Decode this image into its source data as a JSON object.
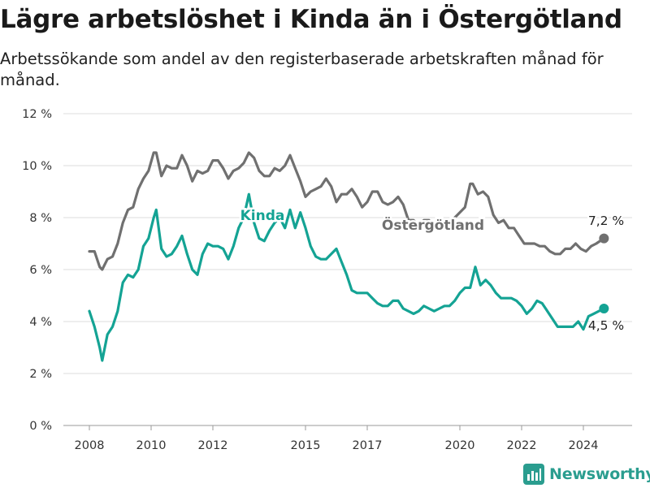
{
  "title": "Lägre arbetslöshet i Kinda än i Östergötland",
  "subtitle": "Arbetssökande som andel av den registerbaserade arbetskraften månad för månad.",
  "brand": {
    "name": "Newsworthy",
    "color": "#2a9d8f",
    "icon": "newsworthy-logo-icon"
  },
  "chart_data": {
    "type": "line",
    "x_ticks": [
      "2008",
      "2010",
      "2012",
      "2015",
      "2017",
      "2020",
      "2022",
      "2024"
    ],
    "y_ticks": [
      "0 %",
      "2 %",
      "4 %",
      "6 %",
      "8 %",
      "10 %",
      "12 %"
    ],
    "ylim": [
      0,
      12
    ],
    "grid": true,
    "series": [
      {
        "name": "Östergötland",
        "color": "#707070",
        "end_label": "7,2 %",
        "points": [
          [
            "2008-01",
            6.7
          ],
          [
            "2008-03",
            6.7
          ],
          [
            "2008-05",
            6.1
          ],
          [
            "2008-06",
            6.0
          ],
          [
            "2008-08",
            6.4
          ],
          [
            "2008-10",
            6.5
          ],
          [
            "2008-12",
            7.0
          ],
          [
            "2009-02",
            7.8
          ],
          [
            "2009-04",
            8.3
          ],
          [
            "2009-06",
            8.4
          ],
          [
            "2009-08",
            9.1
          ],
          [
            "2009-10",
            9.5
          ],
          [
            "2009-12",
            9.8
          ],
          [
            "2010-02",
            10.5
          ],
          [
            "2010-03",
            10.5
          ],
          [
            "2010-05",
            9.6
          ],
          [
            "2010-07",
            10.0
          ],
          [
            "2010-09",
            9.9
          ],
          [
            "2010-11",
            9.9
          ],
          [
            "2011-01",
            10.4
          ],
          [
            "2011-03",
            10.0
          ],
          [
            "2011-05",
            9.4
          ],
          [
            "2011-07",
            9.8
          ],
          [
            "2011-09",
            9.7
          ],
          [
            "2011-11",
            9.8
          ],
          [
            "2012-01",
            10.2
          ],
          [
            "2012-03",
            10.2
          ],
          [
            "2012-05",
            9.9
          ],
          [
            "2012-07",
            9.5
          ],
          [
            "2012-09",
            9.8
          ],
          [
            "2012-11",
            9.9
          ],
          [
            "2013-01",
            10.1
          ],
          [
            "2013-03",
            10.5
          ],
          [
            "2013-05",
            10.3
          ],
          [
            "2013-07",
            9.8
          ],
          [
            "2013-09",
            9.6
          ],
          [
            "2013-11",
            9.6
          ],
          [
            "2014-01",
            9.9
          ],
          [
            "2014-03",
            9.8
          ],
          [
            "2014-05",
            10.0
          ],
          [
            "2014-07",
            10.4
          ],
          [
            "2014-09",
            9.9
          ],
          [
            "2014-11",
            9.4
          ],
          [
            "2015-01",
            8.8
          ],
          [
            "2015-03",
            9.0
          ],
          [
            "2015-05",
            9.1
          ],
          [
            "2015-07",
            9.2
          ],
          [
            "2015-09",
            9.5
          ],
          [
            "2015-11",
            9.2
          ],
          [
            "2016-01",
            8.6
          ],
          [
            "2016-03",
            8.9
          ],
          [
            "2016-05",
            8.9
          ],
          [
            "2016-07",
            9.1
          ],
          [
            "2016-09",
            8.8
          ],
          [
            "2016-11",
            8.4
          ],
          [
            "2017-01",
            8.6
          ],
          [
            "2017-03",
            9.0
          ],
          [
            "2017-05",
            9.0
          ],
          [
            "2017-07",
            8.6
          ],
          [
            "2017-09",
            8.5
          ],
          [
            "2017-11",
            8.6
          ],
          [
            "2018-01",
            8.8
          ],
          [
            "2018-03",
            8.5
          ],
          [
            "2018-05",
            7.9
          ],
          [
            "2018-07",
            7.9
          ],
          [
            "2018-09",
            7.7
          ],
          [
            "2018-11",
            7.9
          ],
          [
            "2019-01",
            7.9
          ],
          [
            "2019-03",
            7.6
          ],
          [
            "2019-05",
            7.6
          ],
          [
            "2019-07",
            7.9
          ],
          [
            "2019-09",
            7.6
          ],
          [
            "2019-11",
            8.0
          ],
          [
            "2020-01",
            8.2
          ],
          [
            "2020-03",
            8.4
          ],
          [
            "2020-05",
            9.3
          ],
          [
            "2020-06",
            9.3
          ],
          [
            "2020-08",
            8.9
          ],
          [
            "2020-10",
            9.0
          ],
          [
            "2020-12",
            8.8
          ],
          [
            "2021-02",
            8.1
          ],
          [
            "2021-04",
            7.8
          ],
          [
            "2021-06",
            7.9
          ],
          [
            "2021-08",
            7.6
          ],
          [
            "2021-10",
            7.6
          ],
          [
            "2021-12",
            7.3
          ],
          [
            "2022-02",
            7.0
          ],
          [
            "2022-04",
            7.0
          ],
          [
            "2022-06",
            7.0
          ],
          [
            "2022-08",
            6.9
          ],
          [
            "2022-10",
            6.9
          ],
          [
            "2022-12",
            6.7
          ],
          [
            "2023-02",
            6.6
          ],
          [
            "2023-04",
            6.6
          ],
          [
            "2023-06",
            6.8
          ],
          [
            "2023-08",
            6.8
          ],
          [
            "2023-10",
            7.0
          ],
          [
            "2023-12",
            6.8
          ],
          [
            "2024-02",
            6.7
          ],
          [
            "2024-04",
            6.9
          ],
          [
            "2024-06",
            7.0
          ],
          [
            "2024-09",
            7.2
          ]
        ]
      },
      {
        "name": "Kinda",
        "color": "#14a394",
        "end_label": "4,5 %",
        "points": [
          [
            "2008-01",
            4.4
          ],
          [
            "2008-03",
            3.8
          ],
          [
            "2008-05",
            3.0
          ],
          [
            "2008-06",
            2.5
          ],
          [
            "2008-08",
            3.5
          ],
          [
            "2008-10",
            3.8
          ],
          [
            "2008-12",
            4.4
          ],
          [
            "2009-02",
            5.5
          ],
          [
            "2009-04",
            5.8
          ],
          [
            "2009-06",
            5.7
          ],
          [
            "2009-08",
            6.0
          ],
          [
            "2009-10",
            6.9
          ],
          [
            "2009-12",
            7.2
          ],
          [
            "2010-02",
            8.0
          ],
          [
            "2010-03",
            8.3
          ],
          [
            "2010-05",
            6.8
          ],
          [
            "2010-07",
            6.5
          ],
          [
            "2010-09",
            6.6
          ],
          [
            "2010-11",
            6.9
          ],
          [
            "2011-01",
            7.3
          ],
          [
            "2011-03",
            6.6
          ],
          [
            "2011-05",
            6.0
          ],
          [
            "2011-07",
            5.8
          ],
          [
            "2011-09",
            6.6
          ],
          [
            "2011-11",
            7.0
          ],
          [
            "2012-01",
            6.9
          ],
          [
            "2012-03",
            6.9
          ],
          [
            "2012-05",
            6.8
          ],
          [
            "2012-07",
            6.4
          ],
          [
            "2012-09",
            6.9
          ],
          [
            "2012-11",
            7.6
          ],
          [
            "2013-01",
            8.0
          ],
          [
            "2013-03",
            8.9
          ],
          [
            "2013-05",
            7.8
          ],
          [
            "2013-07",
            7.2
          ],
          [
            "2013-09",
            7.1
          ],
          [
            "2013-11",
            7.5
          ],
          [
            "2014-01",
            7.8
          ],
          [
            "2014-03",
            8.0
          ],
          [
            "2014-05",
            7.6
          ],
          [
            "2014-07",
            8.3
          ],
          [
            "2014-09",
            7.6
          ],
          [
            "2014-11",
            8.2
          ],
          [
            "2015-01",
            7.6
          ],
          [
            "2015-03",
            6.9
          ],
          [
            "2015-05",
            6.5
          ],
          [
            "2015-07",
            6.4
          ],
          [
            "2015-09",
            6.4
          ],
          [
            "2015-11",
            6.6
          ],
          [
            "2016-01",
            6.8
          ],
          [
            "2016-03",
            6.3
          ],
          [
            "2016-05",
            5.8
          ],
          [
            "2016-07",
            5.2
          ],
          [
            "2016-09",
            5.1
          ],
          [
            "2016-11",
            5.1
          ],
          [
            "2017-01",
            5.1
          ],
          [
            "2017-03",
            4.9
          ],
          [
            "2017-05",
            4.7
          ],
          [
            "2017-07",
            4.6
          ],
          [
            "2017-09",
            4.6
          ],
          [
            "2017-11",
            4.8
          ],
          [
            "2018-01",
            4.8
          ],
          [
            "2018-03",
            4.5
          ],
          [
            "2018-05",
            4.4
          ],
          [
            "2018-07",
            4.3
          ],
          [
            "2018-09",
            4.4
          ],
          [
            "2018-11",
            4.6
          ],
          [
            "2019-01",
            4.5
          ],
          [
            "2019-03",
            4.4
          ],
          [
            "2019-05",
            4.5
          ],
          [
            "2019-07",
            4.6
          ],
          [
            "2019-09",
            4.6
          ],
          [
            "2019-11",
            4.8
          ],
          [
            "2020-01",
            5.1
          ],
          [
            "2020-03",
            5.3
          ],
          [
            "2020-05",
            5.3
          ],
          [
            "2020-07",
            6.1
          ],
          [
            "2020-09",
            5.4
          ],
          [
            "2020-11",
            5.6
          ],
          [
            "2021-01",
            5.4
          ],
          [
            "2021-03",
            5.1
          ],
          [
            "2021-05",
            4.9
          ],
          [
            "2021-07",
            4.9
          ],
          [
            "2021-09",
            4.9
          ],
          [
            "2021-11",
            4.8
          ],
          [
            "2022-01",
            4.6
          ],
          [
            "2022-03",
            4.3
          ],
          [
            "2022-05",
            4.5
          ],
          [
            "2022-07",
            4.8
          ],
          [
            "2022-09",
            4.7
          ],
          [
            "2022-11",
            4.4
          ],
          [
            "2023-01",
            4.1
          ],
          [
            "2023-03",
            3.8
          ],
          [
            "2023-05",
            3.8
          ],
          [
            "2023-07",
            3.8
          ],
          [
            "2023-09",
            3.8
          ],
          [
            "2023-11",
            4.0
          ],
          [
            "2024-01",
            3.7
          ],
          [
            "2024-03",
            4.2
          ],
          [
            "2024-05",
            4.3
          ],
          [
            "2024-09",
            4.5
          ]
        ]
      }
    ]
  }
}
